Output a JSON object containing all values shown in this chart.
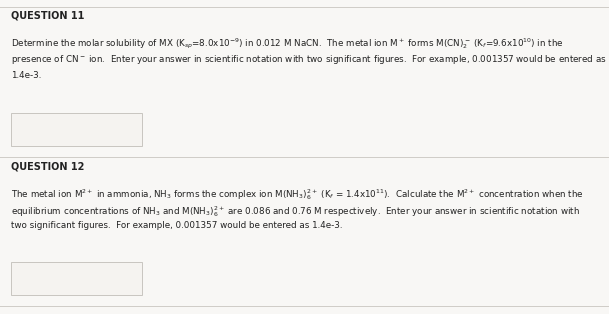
{
  "bg_color": "#f0eeec",
  "section_bg": "#f8f7f5",
  "text_color": "#222222",
  "q11_title": "QUESTION 11",
  "q11_body_line1": "Determine the molar solubility of MX (K$_{sp}$=8.0x10$^{-9}$) in 0.012 M NaCN.  The metal ion M$^+$ forms M(CN)$_2^-$ (K$_f$=9.6x10$^{10}$) in the",
  "q11_body_line2": "presence of CN$^-$ ion.  Enter your answer in scientific notation with two significant figures.  For example, 0.001357 would be entered as",
  "q11_body_line3": "1.4e-3.",
  "q12_title": "QUESTION 12",
  "q12_body_line1": "The metal ion M$^{2+}$ in ammonia, NH$_3$ forms the complex ion M(NH$_3$)$_6^{2+}$ (K$_f$ = 1.4x10$^{11}$).  Calculate the M$^{2+}$ concentration when the",
  "q12_body_line2": "equilibrium concentrations of NH$_3$ and M(NH$_3$)$_6^{2+}$ are 0.086 and 0.76 M respectively.  Enter your answer in scientific notation with",
  "q12_body_line3": "two significant figures.  For example, 0.001357 would be entered as 1.4e-3.",
  "answer_box_color": "#f5f3f0",
  "answer_box_border": "#c8c5c0",
  "divider_color": "#d0cdc8",
  "font_size_title": 7.0,
  "font_size_body": 6.3
}
